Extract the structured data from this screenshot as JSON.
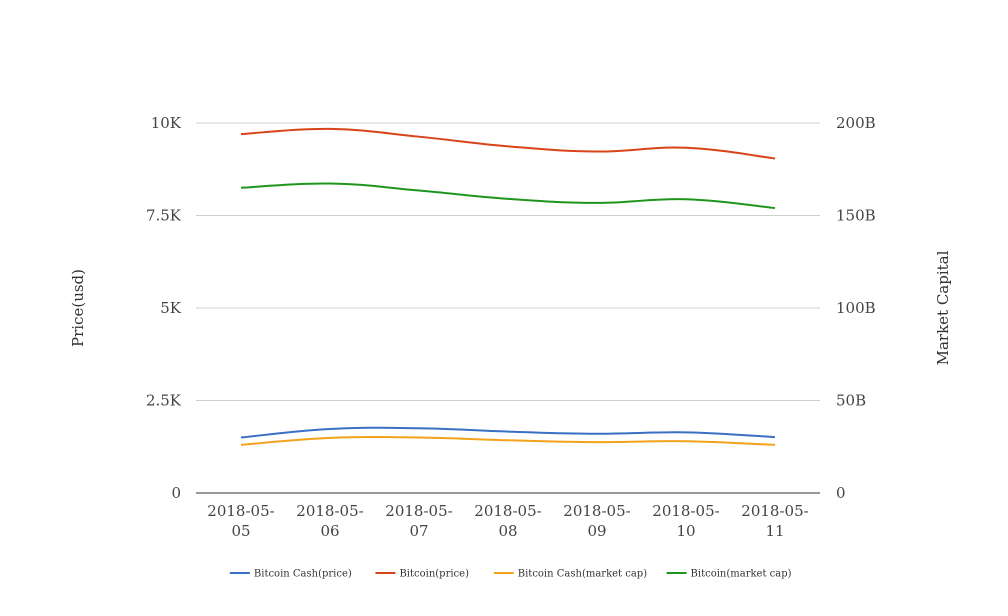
{
  "chart_data": {
    "type": "line",
    "categories": [
      "2018-05-05",
      "2018-05-06",
      "2018-05-07",
      "2018-05-08",
      "2018-05-09",
      "2018-05-10",
      "2018-05-11"
    ],
    "category_labels": [
      [
        "2018-05-",
        "05"
      ],
      [
        "2018-05-",
        "06"
      ],
      [
        "2018-05-",
        "07"
      ],
      [
        "2018-05-",
        "08"
      ],
      [
        "2018-05-",
        "09"
      ],
      [
        "2018-05-",
        "10"
      ],
      [
        "2018-05-",
        "11"
      ]
    ],
    "ylabel_left": "Price(usd)",
    "ylabel_right": "Market Capital",
    "ylim_left": [
      0,
      10000
    ],
    "ylim_right": [
      0,
      200000000000
    ],
    "yticks_left": [
      "0",
      "2.5K",
      "5K",
      "7.5K",
      "10K"
    ],
    "yticks_right": [
      "0",
      "50B",
      "100B",
      "150B",
      "200B"
    ],
    "grid": true,
    "legend_position": "bottom",
    "series": [
      {
        "name": "Bitcoin Cash(price)",
        "axis": "left",
        "color": "#3a6fc4",
        "values": [
          1500,
          1730,
          1750,
          1660,
          1600,
          1640,
          1510
        ]
      },
      {
        "name": "Bitcoin(price)",
        "axis": "left",
        "color": "#d9431a",
        "values": [
          9700,
          9840,
          9630,
          9370,
          9230,
          9330,
          9040
        ]
      },
      {
        "name": "Bitcoin Cash(market cap)",
        "axis": "right",
        "color": "#f4a21c",
        "values": [
          26000000000,
          29800000000,
          30000000000,
          28500000000,
          27500000000,
          28000000000,
          26000000000
        ]
      },
      {
        "name": "Bitcoin(market cap)",
        "axis": "right",
        "color": "#1e961e",
        "values": [
          165000000000,
          167300000000,
          163500000000,
          159000000000,
          156800000000,
          158800000000,
          154000000000
        ]
      }
    ]
  }
}
